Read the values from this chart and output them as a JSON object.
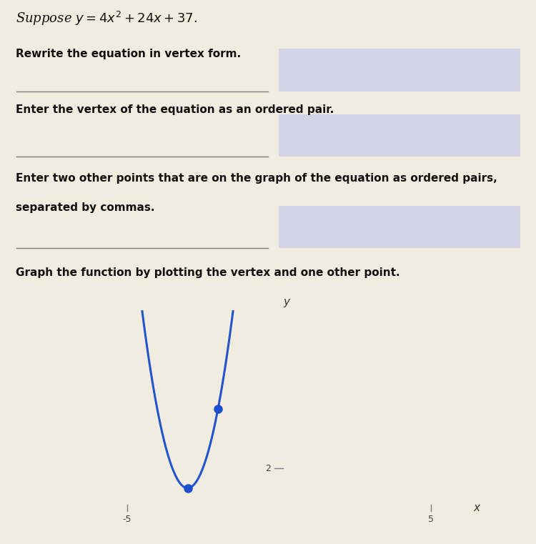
{
  "title_text": "Suppose $y = 4x^2 + 24x + 37$.",
  "line1": "Rewrite the equation in vertex form.",
  "line2": "Enter the vertex of the equation as an ordered pair.",
  "line3a": "Enter two other points that are on the graph of the equation as ordered pairs,",
  "line3b": "separated by commas.",
  "line4": "Graph the function by plotting the vertex and one other point.",
  "vertex": [
    -3,
    1
  ],
  "other_point": [
    -2,
    5
  ],
  "curve_color": "#2255cc",
  "dot_color": "#1a4fcc",
  "background_color": "#f0ece0",
  "box_color": "#c8cce8",
  "text_color": "#111111",
  "xlim": [
    -6,
    6
  ],
  "ylim": [
    -1,
    10
  ],
  "xticks": [
    -5,
    5
  ],
  "yticks": [
    2
  ],
  "axis_label_x": "x",
  "axis_label_y": "y",
  "figsize": [
    7.5,
    7.61
  ],
  "dpi": 100
}
